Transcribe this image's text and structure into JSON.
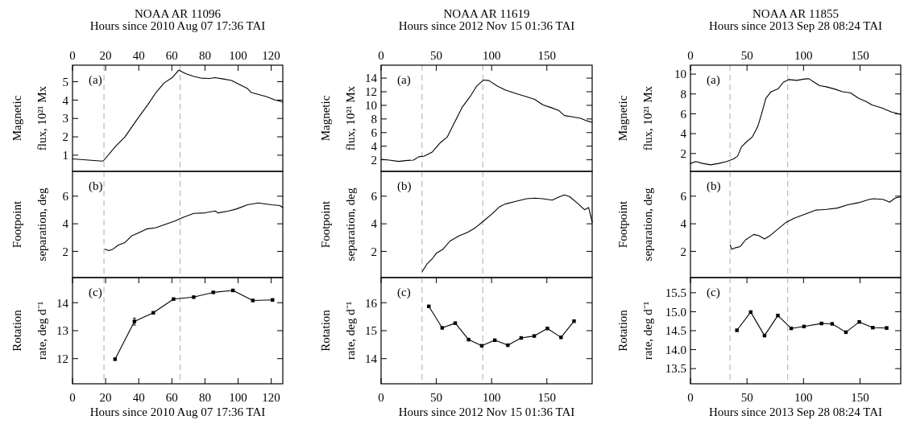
{
  "chart_data": [
    {
      "type": "line",
      "title": "NOAA AR 11096",
      "x2label": "Hours since 2010 Aug 07 17:36 TAI",
      "ylabel": "Magnetic\nflux, 10²¹ Mx",
      "annotations": [
        "(a)"
      ],
      "xlim": [
        0,
        127
      ],
      "x2lim": [
        0,
        127
      ],
      "x2ticks": [
        0,
        20,
        40,
        60,
        80,
        100,
        120
      ],
      "ylim": [
        0.12,
        5.9
      ],
      "yticks": [
        1,
        2,
        3,
        4,
        5
      ],
      "tick_labels": "y",
      "marker": "none",
      "line_style": "solid",
      "ref_lines": [
        {
          "axis": "x",
          "value": 19,
          "color": "#b4b4b4",
          "line_style": "dashed"
        },
        {
          "axis": "x",
          "value": 65,
          "color": "#b4b4b4",
          "line_style": "dashed"
        }
      ],
      "series": [
        {
          "color": "#000000",
          "x": [
            0,
            17.9,
            18.7,
            26,
            31.7,
            39,
            45.5,
            50.4,
            55.3,
            60.2,
            64.2,
            68.3,
            73.2,
            78,
            82.9,
            86,
            91,
            96,
            100.8,
            105.7,
            108,
            112,
            117,
            122,
            127
          ],
          "values": [
            0.8,
            0.68,
            0.7,
            1.48,
            2.0,
            2.95,
            3.75,
            4.41,
            4.93,
            5.22,
            5.63,
            5.44,
            5.29,
            5.19,
            5.18,
            5.22,
            5.15,
            5.07,
            4.85,
            4.63,
            4.41,
            4.31,
            4.19,
            4.02,
            3.9
          ]
        }
      ]
    },
    {
      "type": "line",
      "title": "NOAA AR 11619",
      "x2label": "Hours since 2012 Nov 15 01:36 TAI",
      "ylabel": "Magnetic\nflux, 10²¹ Mx",
      "annotations": [
        "(a)"
      ],
      "xlim": [
        0,
        191
      ],
      "x2lim": [
        0,
        191
      ],
      "x2ticks": [
        0,
        50,
        100,
        150
      ],
      "ylim": [
        0.3,
        15.9
      ],
      "yticks": [
        2,
        4,
        6,
        8,
        10,
        12,
        14
      ],
      "tick_labels": "y",
      "marker": "none",
      "line_style": "solid",
      "ref_lines": [
        {
          "axis": "x",
          "value": 37,
          "color": "#b4b4b4",
          "line_style": "dashed"
        },
        {
          "axis": "x",
          "value": 92,
          "color": "#b4b4b4",
          "line_style": "dashed"
        }
      ],
      "series": [
        {
          "color": "#000000",
          "x": [
            0,
            7.3,
            15.9,
            22,
            29.3,
            34.1,
            39,
            46.3,
            53.7,
            59.8,
            65.9,
            73.2,
            80.5,
            86.6,
            92.7,
            97.6,
            104.9,
            112.2,
            122,
            131.7,
            139,
            146.3,
            153.7,
            161,
            165.9,
            173.2,
            180.5,
            186.6,
            191
          ],
          "values": [
            2.08,
            1.96,
            1.76,
            1.88,
            1.96,
            2.44,
            2.55,
            3.15,
            4.53,
            5.33,
            7.3,
            9.68,
            11.27,
            12.85,
            13.72,
            13.64,
            12.85,
            12.26,
            11.74,
            11.27,
            10.87,
            10.08,
            9.68,
            9.21,
            8.5,
            8.3,
            8.1,
            7.7,
            7.5
          ]
        }
      ]
    },
    {
      "type": "line",
      "title": "NOAA AR 11855",
      "x2label": "Hours since 2013 Sep 28 08:24 TAI",
      "ylabel": "Magnetic\nflux, 10²¹ Mx",
      "annotations": [
        "(a)"
      ],
      "xlim": [
        0,
        186
      ],
      "x2lim": [
        0,
        186
      ],
      "x2ticks": [
        0,
        50,
        100,
        150
      ],
      "ylim": [
        0.2,
        10.9
      ],
      "yticks": [
        2,
        4,
        6,
        8,
        10
      ],
      "tick_labels": "y",
      "marker": "none",
      "line_style": "solid",
      "ref_lines": [
        {
          "axis": "x",
          "value": 35,
          "color": "#b4b4b4",
          "line_style": "dashed"
        },
        {
          "axis": "x",
          "value": 86,
          "color": "#b4b4b4",
          "line_style": "dashed"
        }
      ],
      "series": [
        {
          "color": "#000000",
          "x": [
            0,
            4.8,
            10.7,
            17.9,
            25,
            32.1,
            38.1,
            41.7,
            45.2,
            50,
            54.8,
            59.5,
            63.1,
            66.7,
            71.4,
            77.4,
            82.1,
            86.9,
            94,
            101.2,
            104.8,
            109.5,
            114.3,
            120.2,
            127.4,
            134.5,
            141.7,
            148.8,
            154.8,
            160.7,
            169,
            177.4,
            186
          ],
          "values": [
            1.0,
            1.19,
            1.0,
            0.86,
            1.0,
            1.19,
            1.46,
            1.73,
            2.68,
            3.22,
            3.68,
            4.71,
            6.07,
            7.56,
            8.23,
            8.5,
            9.18,
            9.45,
            9.37,
            9.51,
            9.53,
            9.18,
            8.83,
            8.72,
            8.5,
            8.23,
            8.1,
            7.56,
            7.28,
            6.88,
            6.61,
            6.2,
            5.93
          ]
        }
      ]
    },
    {
      "type": "line",
      "ylabel": "Footpoint\nseparation, deg",
      "annotations": [
        "(b)"
      ],
      "xlim": [
        0,
        127
      ],
      "ylim": [
        0.1,
        7.8
      ],
      "yticks": [
        2,
        4,
        6
      ],
      "tick_labels": "y",
      "marker": "none",
      "line_style": "solid",
      "ref_lines": [
        {
          "axis": "x",
          "value": 19,
          "color": "#b4b4b4",
          "line_style": "dashed"
        },
        {
          "axis": "x",
          "value": 65,
          "color": "#b4b4b4",
          "line_style": "dashed"
        }
      ],
      "series": [
        {
          "color": "#000000",
          "x": [
            19.5,
            22,
            24.4,
            27.6,
            31.7,
            35.8,
            39,
            44.7,
            50.4,
            56.9,
            61.8,
            66.7,
            73.2,
            79.7,
            86.2,
            87.8,
            94.3,
            99.2,
            105.7,
            112.2,
            114.6,
            120.3,
            125.2,
            127
          ],
          "values": [
            2.16,
            2.06,
            2.16,
            2.45,
            2.64,
            3.13,
            3.29,
            3.62,
            3.72,
            4.0,
            4.2,
            4.46,
            4.75,
            4.79,
            4.93,
            4.79,
            4.93,
            5.08,
            5.38,
            5.51,
            5.47,
            5.38,
            5.32,
            5.18
          ]
        }
      ]
    },
    {
      "type": "line",
      "ylabel": "Footpoint\nseparation, deg",
      "annotations": [
        "(b)"
      ],
      "xlim": [
        0,
        191
      ],
      "ylim": [
        0.1,
        7.8
      ],
      "yticks": [
        2,
        4,
        6
      ],
      "tick_labels": "y",
      "marker": "none",
      "line_style": "solid",
      "ref_lines": [
        {
          "axis": "x",
          "value": 37,
          "color": "#b4b4b4",
          "line_style": "dashed"
        },
        {
          "axis": "x",
          "value": 92,
          "color": "#b4b4b4",
          "line_style": "dashed"
        }
      ],
      "series": [
        {
          "color": "#000000",
          "x": [
            37.3,
            41.5,
            46.3,
            50,
            56.1,
            62.2,
            70.7,
            78,
            85.4,
            92.7,
            100,
            107.3,
            112.2,
            122,
            131.7,
            139,
            146.3,
            154.9,
            159.8,
            165.9,
            170.7,
            178,
            184.1,
            187.8,
            191
          ],
          "values": [
            0.54,
            1.08,
            1.47,
            1.86,
            2.16,
            2.74,
            3.13,
            3.37,
            3.72,
            4.2,
            4.69,
            5.24,
            5.43,
            5.63,
            5.82,
            5.86,
            5.82,
            5.71,
            5.9,
            6.1,
            5.96,
            5.47,
            5.02,
            5.18,
            4.1
          ]
        }
      ]
    },
    {
      "type": "line",
      "ylabel": "Footpoint\nseparation, deg",
      "annotations": [
        "(b)"
      ],
      "xlim": [
        0,
        186
      ],
      "ylim": [
        0.1,
        7.8
      ],
      "yticks": [
        2,
        4,
        6
      ],
      "tick_labels": "y",
      "marker": "none",
      "line_style": "solid",
      "ref_lines": [
        {
          "axis": "x",
          "value": 35,
          "color": "#b4b4b4",
          "line_style": "dashed"
        },
        {
          "axis": "x",
          "value": 86,
          "color": "#b4b4b4",
          "line_style": "dashed"
        }
      ],
      "series": [
        {
          "color": "#000000",
          "x": [
            35.2,
            36.4,
            39.3,
            44,
            48.8,
            56,
            60.7,
            65.5,
            70.2,
            77.4,
            84.5,
            91.7,
            101.2,
            110.7,
            120.2,
            129.8,
            139.3,
            148.8,
            158.3,
            161.9,
            170.2,
            176.2,
            181,
            186
          ],
          "values": [
            2.45,
            2.16,
            2.25,
            2.35,
            2.84,
            3.23,
            3.13,
            2.9,
            3.13,
            3.62,
            4.1,
            4.4,
            4.69,
            4.99,
            5.04,
            5.14,
            5.38,
            5.53,
            5.77,
            5.82,
            5.77,
            5.57,
            5.86,
            5.96
          ]
        }
      ]
    },
    {
      "type": "line",
      "ylabel": "Rotation\nrate, deg d⁻¹",
      "xlabel": "Hours since 2010 Aug 07 17:36 TAI",
      "annotations": [
        "(c)"
      ],
      "xlim": [
        0,
        127
      ],
      "xticks": [
        0,
        20,
        40,
        60,
        80,
        100,
        120
      ],
      "ylim": [
        11.1,
        14.9
      ],
      "yticks": [
        12,
        13,
        14
      ],
      "marker": "square",
      "line_style": "solid",
      "ref_lines": [
        {
          "axis": "x",
          "value": 19,
          "color": "#b4b4b4",
          "line_style": "dashed"
        },
        {
          "axis": "x",
          "value": 65,
          "color": "#b4b4b4",
          "line_style": "dashed"
        }
      ],
      "series": [
        {
          "color": "#000000",
          "x": [
            25.7,
            37.4,
            48.8,
            61,
            73.2,
            85,
            96.9,
            108.9,
            120.8
          ],
          "values": [
            11.98,
            13.33,
            13.64,
            14.13,
            14.2,
            14.37,
            14.44,
            14.08,
            14.1
          ],
          "errors": [
            null,
            [
              13.2,
              13.45
            ],
            null,
            null,
            null,
            null,
            null,
            null,
            null
          ]
        }
      ]
    },
    {
      "type": "line",
      "ylabel": "Rotation\nrate, deg d⁻¹",
      "xlabel": "Hours since 2012 Nov 15 01:36 TAI",
      "annotations": [
        "(c)"
      ],
      "xlim": [
        0,
        191
      ],
      "xticks": [
        0,
        50,
        100,
        150
      ],
      "ylim": [
        13.1,
        16.9
      ],
      "yticks": [
        14,
        15,
        16
      ],
      "marker": "square",
      "line_style": "solid",
      "ref_lines": [
        {
          "axis": "x",
          "value": 37,
          "color": "#b4b4b4",
          "line_style": "dashed"
        },
        {
          "axis": "x",
          "value": 92,
          "color": "#b4b4b4",
          "line_style": "dashed"
        }
      ],
      "series": [
        {
          "color": "#000000",
          "x": [
            43.2,
            55.3,
            67.1,
            79.2,
            91.1,
            102.9,
            114.7,
            126.8,
            138.6,
            150.5,
            162.8,
            174.6
          ],
          "values": [
            15.87,
            15.1,
            15.27,
            14.68,
            14.46,
            14.66,
            14.48,
            14.74,
            14.81,
            15.08,
            14.76,
            15.34
          ]
        }
      ]
    },
    {
      "type": "line",
      "ylabel": "Rotation\nrate, deg d⁻¹",
      "xlabel": "Hours since 2013 Sep 28 08:24 TAI",
      "annotations": [
        "(c)"
      ],
      "xlim": [
        0,
        186
      ],
      "xticks": [
        0,
        50,
        100,
        150
      ],
      "ylim": [
        13.1,
        15.9
      ],
      "yticks": [
        {
          "value": 13.5,
          "label": "13.5"
        },
        {
          "value": 14,
          "label": "14.0"
        },
        {
          "value": 14.5,
          "label": "14.5"
        },
        {
          "value": 15,
          "label": "15.0"
        },
        {
          "value": 15.5,
          "label": "15.5"
        }
      ],
      "marker": "square",
      "line_style": "solid",
      "ref_lines": [
        {
          "axis": "x",
          "value": 35,
          "color": "#b4b4b4",
          "line_style": "dashed"
        },
        {
          "axis": "x",
          "value": 86,
          "color": "#b4b4b4",
          "line_style": "dashed"
        }
      ],
      "series": [
        {
          "color": "#000000",
          "x": [
            41.1,
            53.3,
            65.5,
            77.3,
            89.1,
            100.4,
            115.9,
            125.3,
            137.5,
            149.3,
            161.3,
            173.5
          ],
          "values": [
            14.51,
            14.99,
            14.37,
            14.9,
            14.56,
            14.61,
            14.69,
            14.68,
            14.46,
            14.73,
            14.58,
            14.57
          ],
          "errors": [
            null,
            null,
            null,
            null,
            null,
            null,
            null,
            null,
            null,
            null,
            null,
            0.03
          ]
        }
      ]
    }
  ]
}
